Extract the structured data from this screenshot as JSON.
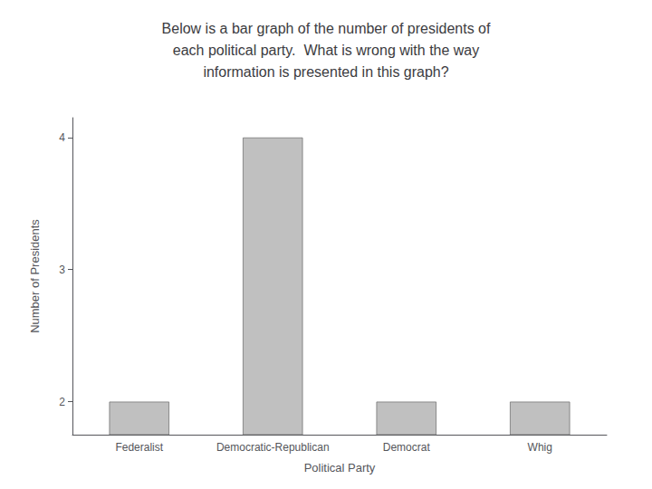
{
  "chart_data": {
    "type": "bar",
    "title": "Below is a bar graph of the number of presidents of\neach political party.  What is wrong with the way\ninformation is presented in this graph?",
    "xlabel": "Political Party",
    "ylabel": "Number of Presidents",
    "categories": [
      "Federalist",
      "Democratic-Republican",
      "Democrat",
      "Whig"
    ],
    "values": [
      2,
      4,
      2,
      2
    ],
    "color": "#c0c0c0",
    "ylim": [
      1.75,
      4.15
    ],
    "yticks": [
      2,
      3,
      4
    ],
    "grid": false
  }
}
